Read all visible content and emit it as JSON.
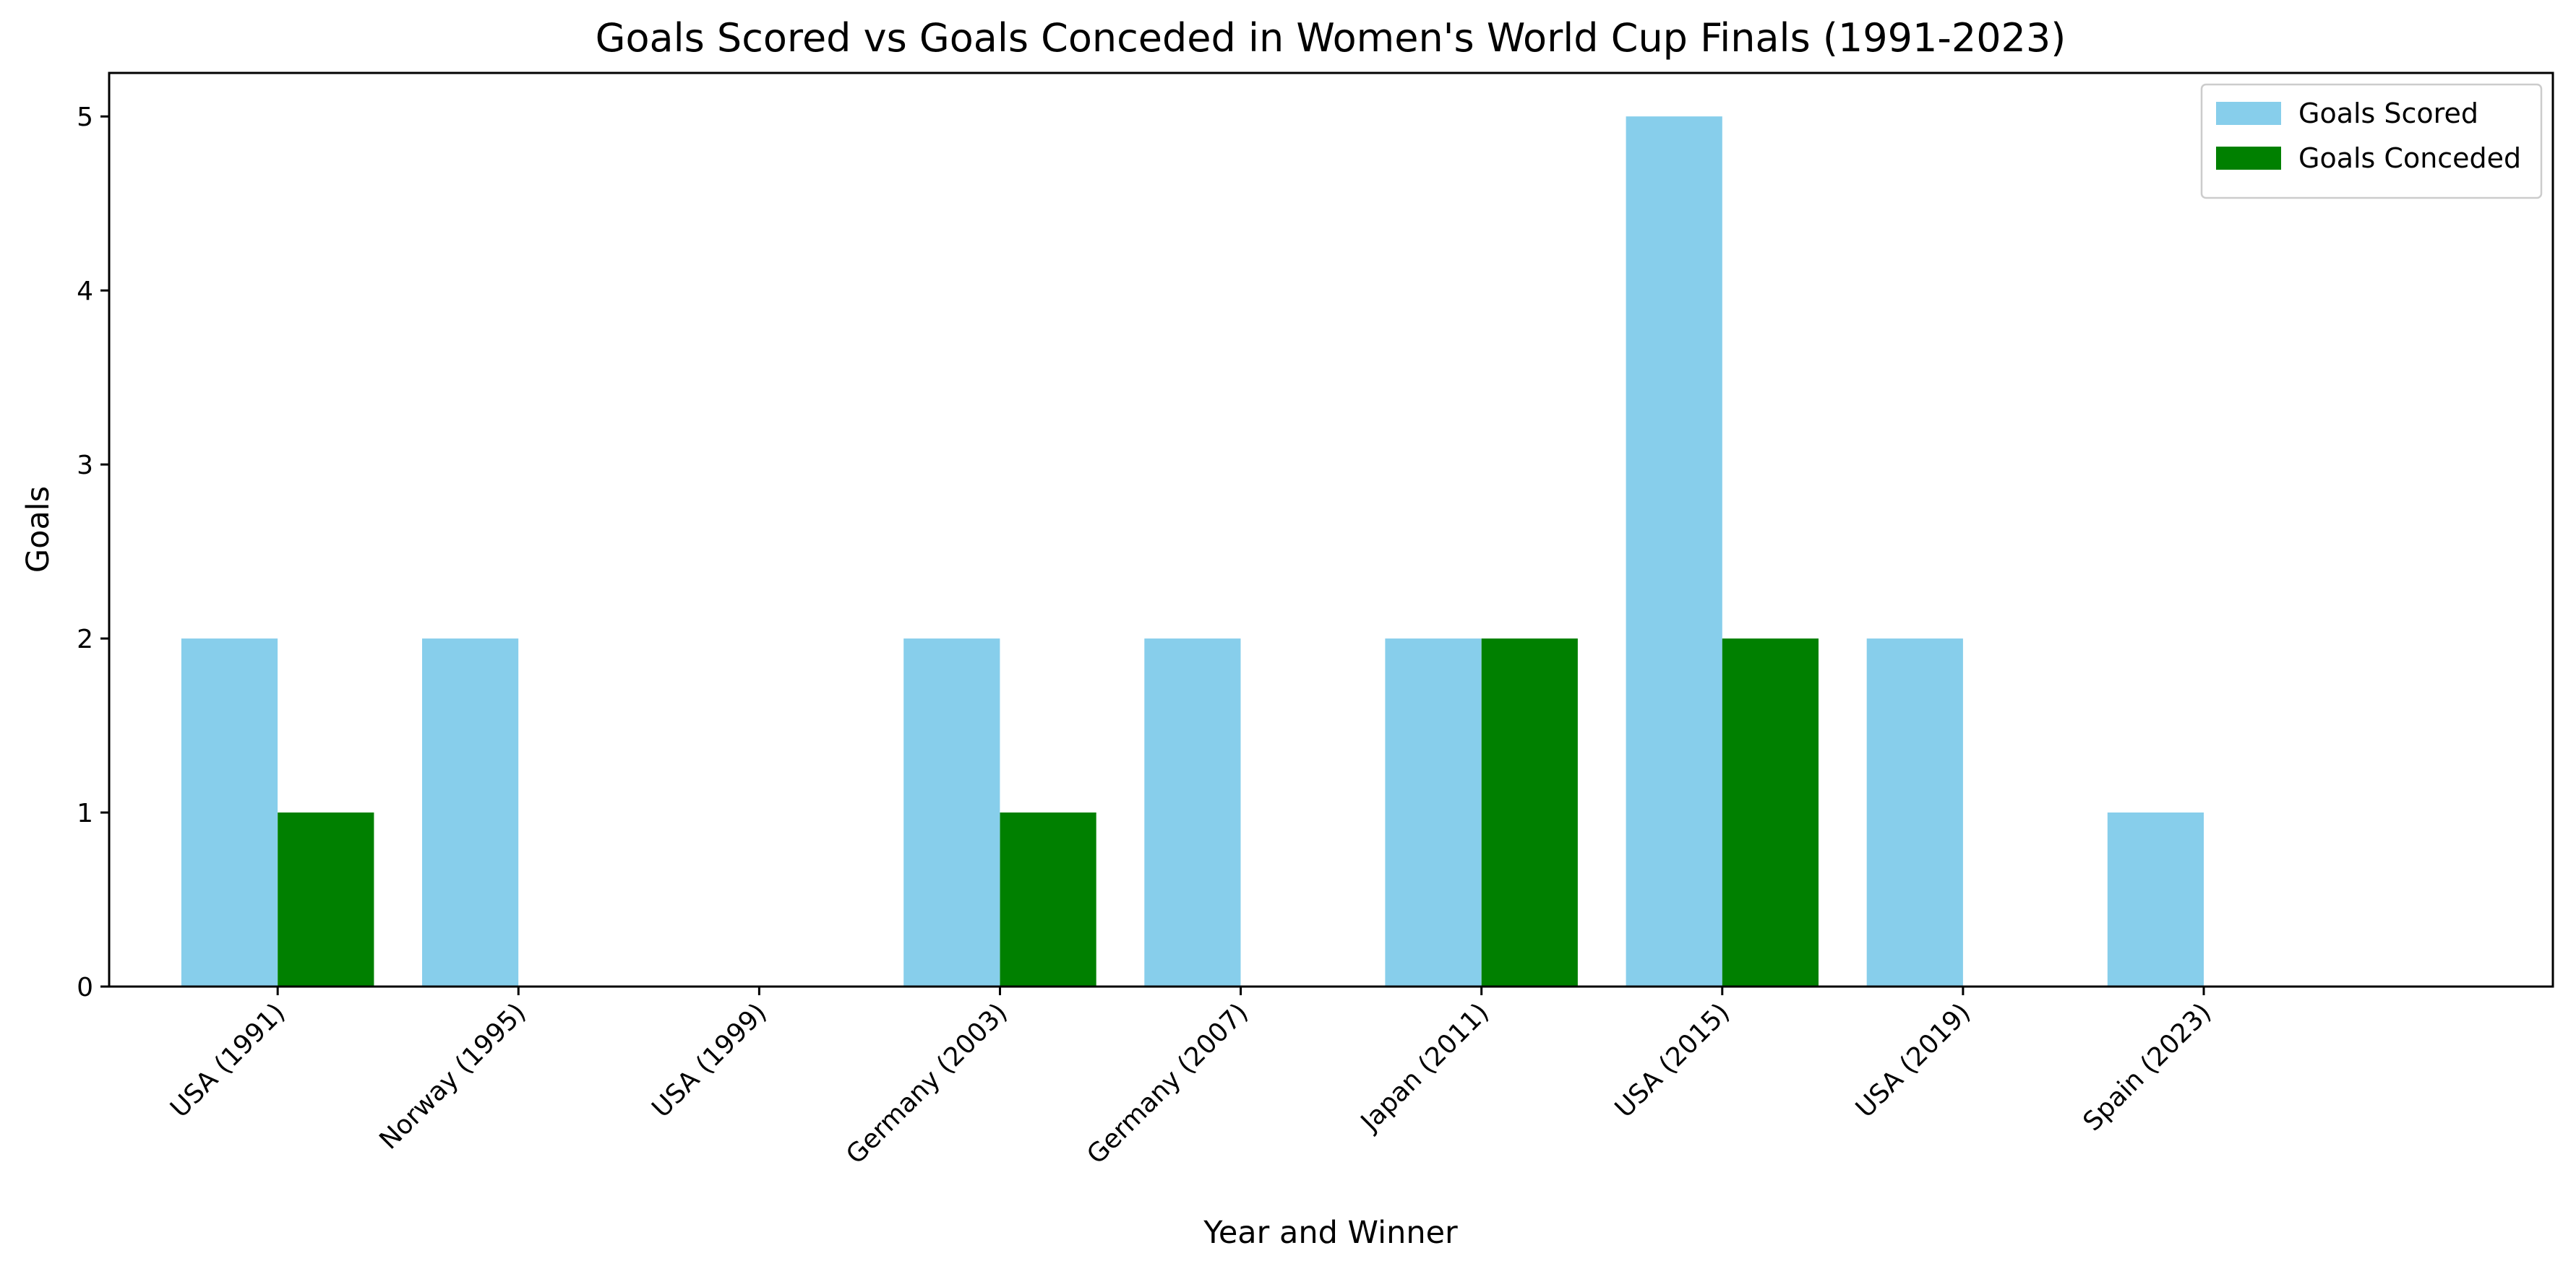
{
  "chart_data": {
    "type": "bar",
    "title": "Goals Scored vs Goals Conceded in Women's World Cup Finals (1991-2023)",
    "xlabel": "Year and Winner",
    "ylabel": "Goals",
    "categories": [
      "USA (1991)",
      "Norway (1995)",
      "USA (1999)",
      "Germany (2003)",
      "Germany (2007)",
      "Japan (2011)",
      "USA (2015)",
      "USA (2019)",
      "Spain (2023)"
    ],
    "series": [
      {
        "name": "Goals Scored",
        "color": "#87ceeb",
        "values": [
          2,
          2,
          0,
          2,
          2,
          2,
          5,
          2,
          1
        ]
      },
      {
        "name": "Goals Conceded",
        "color": "#008000",
        "values": [
          1,
          0,
          0,
          1,
          0,
          2,
          2,
          0,
          0
        ]
      }
    ],
    "ylim": [
      0,
      5.25
    ],
    "yticks": [
      0,
      1,
      2,
      3,
      4,
      5
    ],
    "grid": false,
    "legend_position": "top-right"
  }
}
